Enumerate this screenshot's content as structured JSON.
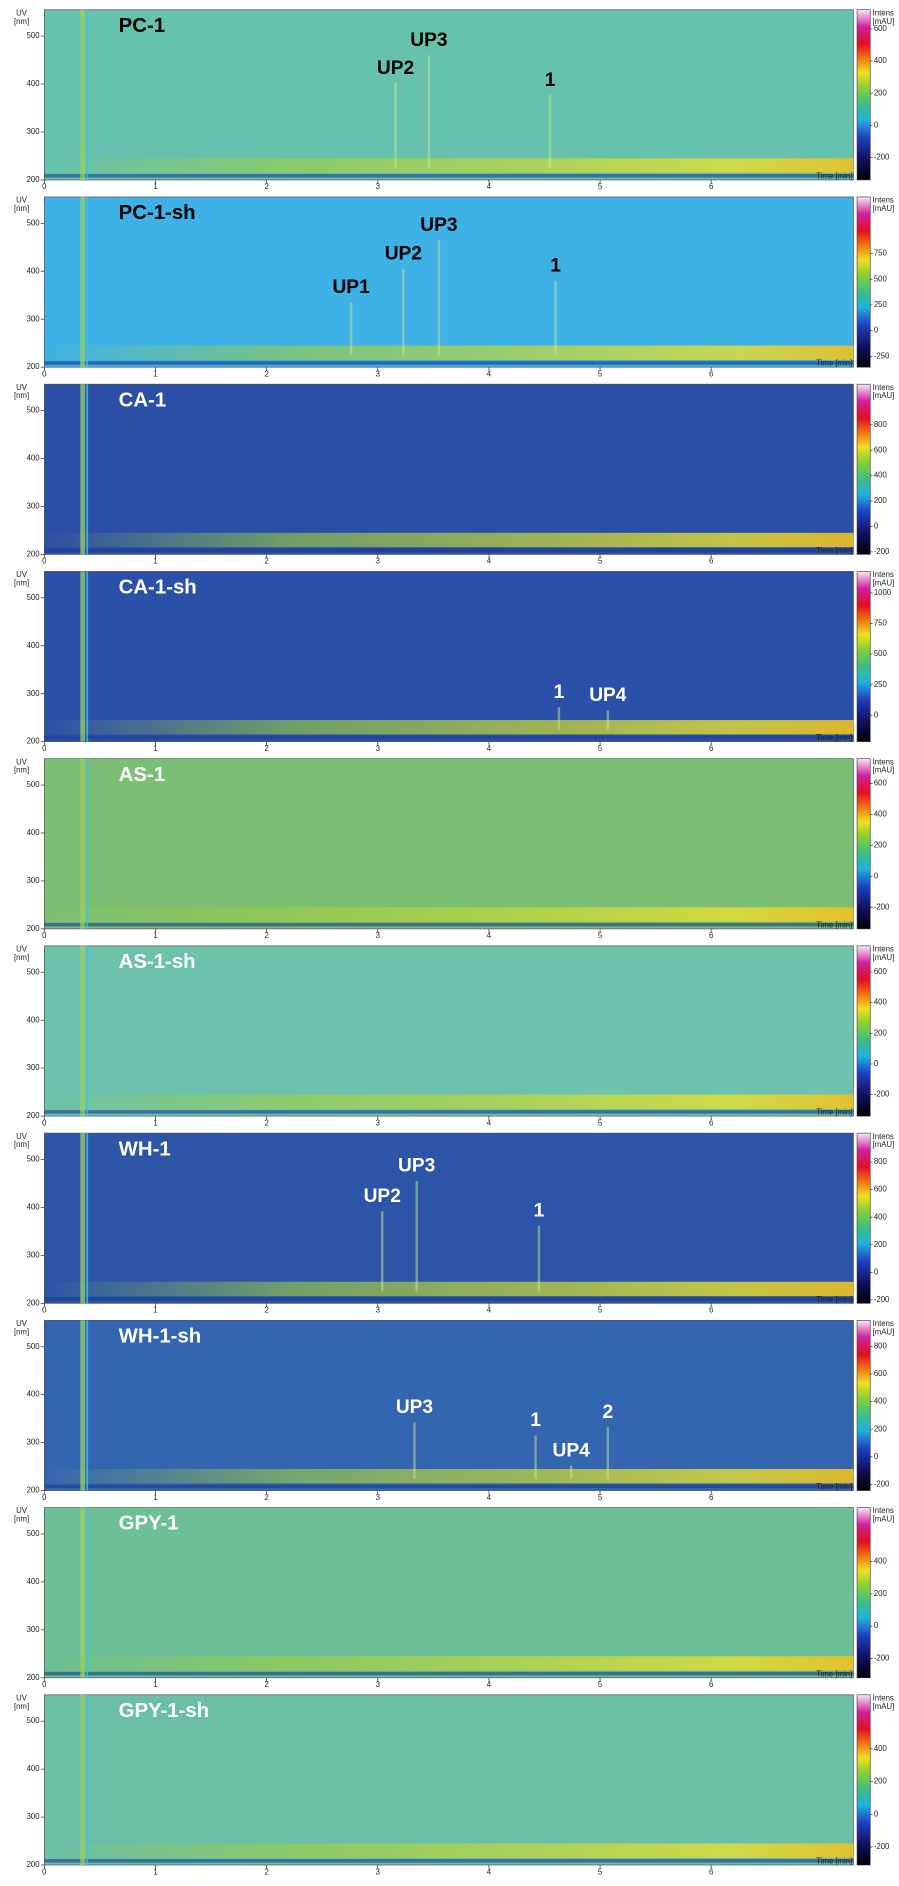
{
  "chart_data": [
    {
      "type": "heatmap",
      "title": "PC-1",
      "text_color": "#000000",
      "color": "#66c2ad",
      "xlim": [
        0,
        7.28
      ],
      "ylim": [
        200,
        555
      ],
      "xticks": [
        0,
        1,
        2,
        3,
        4,
        5,
        6
      ],
      "yticks": [
        200,
        300,
        400,
        500
      ],
      "clim": [
        -340,
        720
      ],
      "cticks": [
        600,
        400,
        200,
        0,
        -200
      ],
      "ylabel": "UV",
      "yunit": "[nm]",
      "xlabel": "Time [min]",
      "colorbar_label": "Intens",
      "colorbar_unit": "[mAU]",
      "annotations": [
        {
          "text": "UP2",
          "x": 3.16,
          "y": 432
        },
        {
          "text": "UP3",
          "x": 3.46,
          "y": 490
        },
        {
          "text": "1",
          "x": 4.55,
          "y": 407
        }
      ]
    },
    {
      "type": "heatmap",
      "title": "PC-1-sh",
      "text_color": "#000000",
      "color": "#3eb1e6",
      "xlim": [
        0,
        7.28
      ],
      "ylim": [
        200,
        555
      ],
      "xticks": [
        0,
        1,
        2,
        3,
        4,
        5,
        6
      ],
      "yticks": [
        200,
        300,
        400,
        500
      ],
      "clim": [
        -355,
        1300
      ],
      "cticks": [
        750,
        500,
        250,
        0,
        -250
      ],
      "ylabel": "UV",
      "yunit": "[nm]",
      "xlabel": "Time [min]",
      "colorbar_label": "Intens",
      "colorbar_unit": "[mAU]",
      "annotations": [
        {
          "text": "UP1",
          "x": 2.76,
          "y": 365
        },
        {
          "text": "UP2",
          "x": 3.23,
          "y": 435
        },
        {
          "text": "UP3",
          "x": 3.55,
          "y": 495
        },
        {
          "text": "1",
          "x": 4.6,
          "y": 410
        }
      ]
    },
    {
      "type": "heatmap",
      "title": "CA-1",
      "text_color": "#ffffff",
      "color": "#2b4fa6",
      "xlim": [
        0,
        7.28
      ],
      "ylim": [
        200,
        555
      ],
      "xticks": [
        0,
        1,
        2,
        3,
        4,
        5,
        6
      ],
      "yticks": [
        200,
        300,
        400,
        500
      ],
      "clim": [
        -220,
        1120
      ],
      "cticks": [
        800,
        600,
        400,
        200,
        0,
        -200
      ],
      "ylabel": "UV",
      "yunit": "[nm]",
      "xlabel": "Time [min]",
      "colorbar_label": "Intens",
      "colorbar_unit": "[mAU]",
      "annotations": []
    },
    {
      "type": "heatmap",
      "title": "CA-1-sh",
      "text_color": "#ffffff",
      "color": "#2b50a8",
      "xlim": [
        0,
        7.28
      ],
      "ylim": [
        200,
        555
      ],
      "xticks": [
        0,
        1,
        2,
        3,
        4,
        5,
        6
      ],
      "yticks": [
        200,
        300,
        400,
        500
      ],
      "clim": [
        -215,
        1175
      ],
      "cticks": [
        1000,
        750,
        500,
        250,
        0
      ],
      "ylabel": "UV",
      "yunit": "[nm]",
      "xlabel": "Time [min]",
      "colorbar_label": "Intens",
      "colorbar_unit": "[mAU]",
      "annotations": [
        {
          "text": "1",
          "x": 4.63,
          "y": 302
        },
        {
          "text": "UP4",
          "x": 5.07,
          "y": 295
        }
      ]
    },
    {
      "type": "heatmap",
      "title": "AS-1",
      "text_color": "#ffffff",
      "color": "#7bbf74",
      "xlim": [
        0,
        7.28
      ],
      "ylim": [
        200,
        555
      ],
      "xticks": [
        0,
        1,
        2,
        3,
        4,
        5,
        6
      ],
      "yticks": [
        200,
        300,
        400,
        500
      ],
      "clim": [
        -340,
        760
      ],
      "cticks": [
        600,
        400,
        200,
        0,
        -200
      ],
      "ylabel": "UV",
      "yunit": "[nm]",
      "xlabel": "Time [min]",
      "colorbar_label": "Intens",
      "colorbar_unit": "[mAU]",
      "annotations": []
    },
    {
      "type": "heatmap",
      "title": "AS-1-sh",
      "text_color": "#ffffff",
      "color": "#6dc2ad",
      "xlim": [
        0,
        7.28
      ],
      "ylim": [
        200,
        555
      ],
      "xticks": [
        0,
        1,
        2,
        3,
        4,
        5,
        6
      ],
      "yticks": [
        200,
        300,
        400,
        500
      ],
      "clim": [
        -340,
        770
      ],
      "cticks": [
        600,
        400,
        200,
        0,
        -200
      ],
      "ylabel": "UV",
      "yunit": "[nm]",
      "xlabel": "Time [min]",
      "colorbar_label": "Intens",
      "colorbar_unit": "[mAU]",
      "annotations": []
    },
    {
      "type": "heatmap",
      "title": "WH-1",
      "text_color": "#ffffff",
      "color": "#2c55a8",
      "xlim": [
        0,
        7.28
      ],
      "ylim": [
        200,
        555
      ],
      "xticks": [
        0,
        1,
        2,
        3,
        4,
        5,
        6
      ],
      "yticks": [
        200,
        300,
        400,
        500
      ],
      "clim": [
        -225,
        1010
      ],
      "cticks": [
        800,
        600,
        400,
        200,
        0,
        -200
      ],
      "ylabel": "UV",
      "yunit": "[nm]",
      "xlabel": "Time [min]",
      "colorbar_label": "Intens",
      "colorbar_unit": "[mAU]",
      "annotations": [
        {
          "text": "UP2",
          "x": 3.04,
          "y": 422
        },
        {
          "text": "UP3",
          "x": 3.35,
          "y": 485
        },
        {
          "text": "1",
          "x": 4.45,
          "y": 392
        }
      ]
    },
    {
      "type": "heatmap",
      "title": "WH-1-sh",
      "text_color": "#ffffff",
      "color": "#3465b1",
      "xlim": [
        0,
        7.28
      ],
      "ylim": [
        200,
        555
      ],
      "xticks": [
        0,
        1,
        2,
        3,
        4,
        5,
        6
      ],
      "yticks": [
        200,
        300,
        400,
        500
      ],
      "clim": [
        -245,
        990
      ],
      "cticks": [
        800,
        600,
        400,
        200,
        0,
        -200
      ],
      "ylabel": "UV",
      "yunit": "[nm]",
      "xlabel": "Time [min]",
      "colorbar_label": "Intens",
      "colorbar_unit": "[mAU]",
      "annotations": [
        {
          "text": "UP3",
          "x": 3.33,
          "y": 372
        },
        {
          "text": "1",
          "x": 4.42,
          "y": 345
        },
        {
          "text": "2",
          "x": 5.07,
          "y": 362
        },
        {
          "text": "UP4",
          "x": 4.74,
          "y": 282
        }
      ]
    },
    {
      "type": "heatmap",
      "title": "GPY-1",
      "text_color": "#ffffff",
      "color": "#6cbf96",
      "xlim": [
        0,
        7.28
      ],
      "ylim": [
        200,
        555
      ],
      "xticks": [
        0,
        1,
        2,
        3,
        4,
        5,
        6
      ],
      "yticks": [
        200,
        300,
        400,
        500
      ],
      "clim": [
        -320,
        735
      ],
      "cticks": [
        400,
        200,
        0,
        -200
      ],
      "ylabel": "UV",
      "yunit": "[nm]",
      "xlabel": "Time [min]",
      "colorbar_label": "Intens",
      "colorbar_unit": "[mAU]",
      "annotations": []
    },
    {
      "type": "heatmap",
      "title": "GPY-1-sh",
      "text_color": "#ffffff",
      "color": "#6bbfa8",
      "xlim": [
        0,
        7.28
      ],
      "ylim": [
        200,
        555
      ],
      "xticks": [
        0,
        1,
        2,
        3,
        4,
        5,
        6
      ],
      "yticks": [
        200,
        300,
        400,
        500
      ],
      "clim": [
        -310,
        730
      ],
      "cticks": [
        400,
        200,
        0,
        -200
      ],
      "ylabel": "UV",
      "yunit": "[nm]",
      "xlabel": "Time [min]",
      "colorbar_label": "Intens",
      "colorbar_unit": "[mAU]",
      "annotations": []
    }
  ]
}
